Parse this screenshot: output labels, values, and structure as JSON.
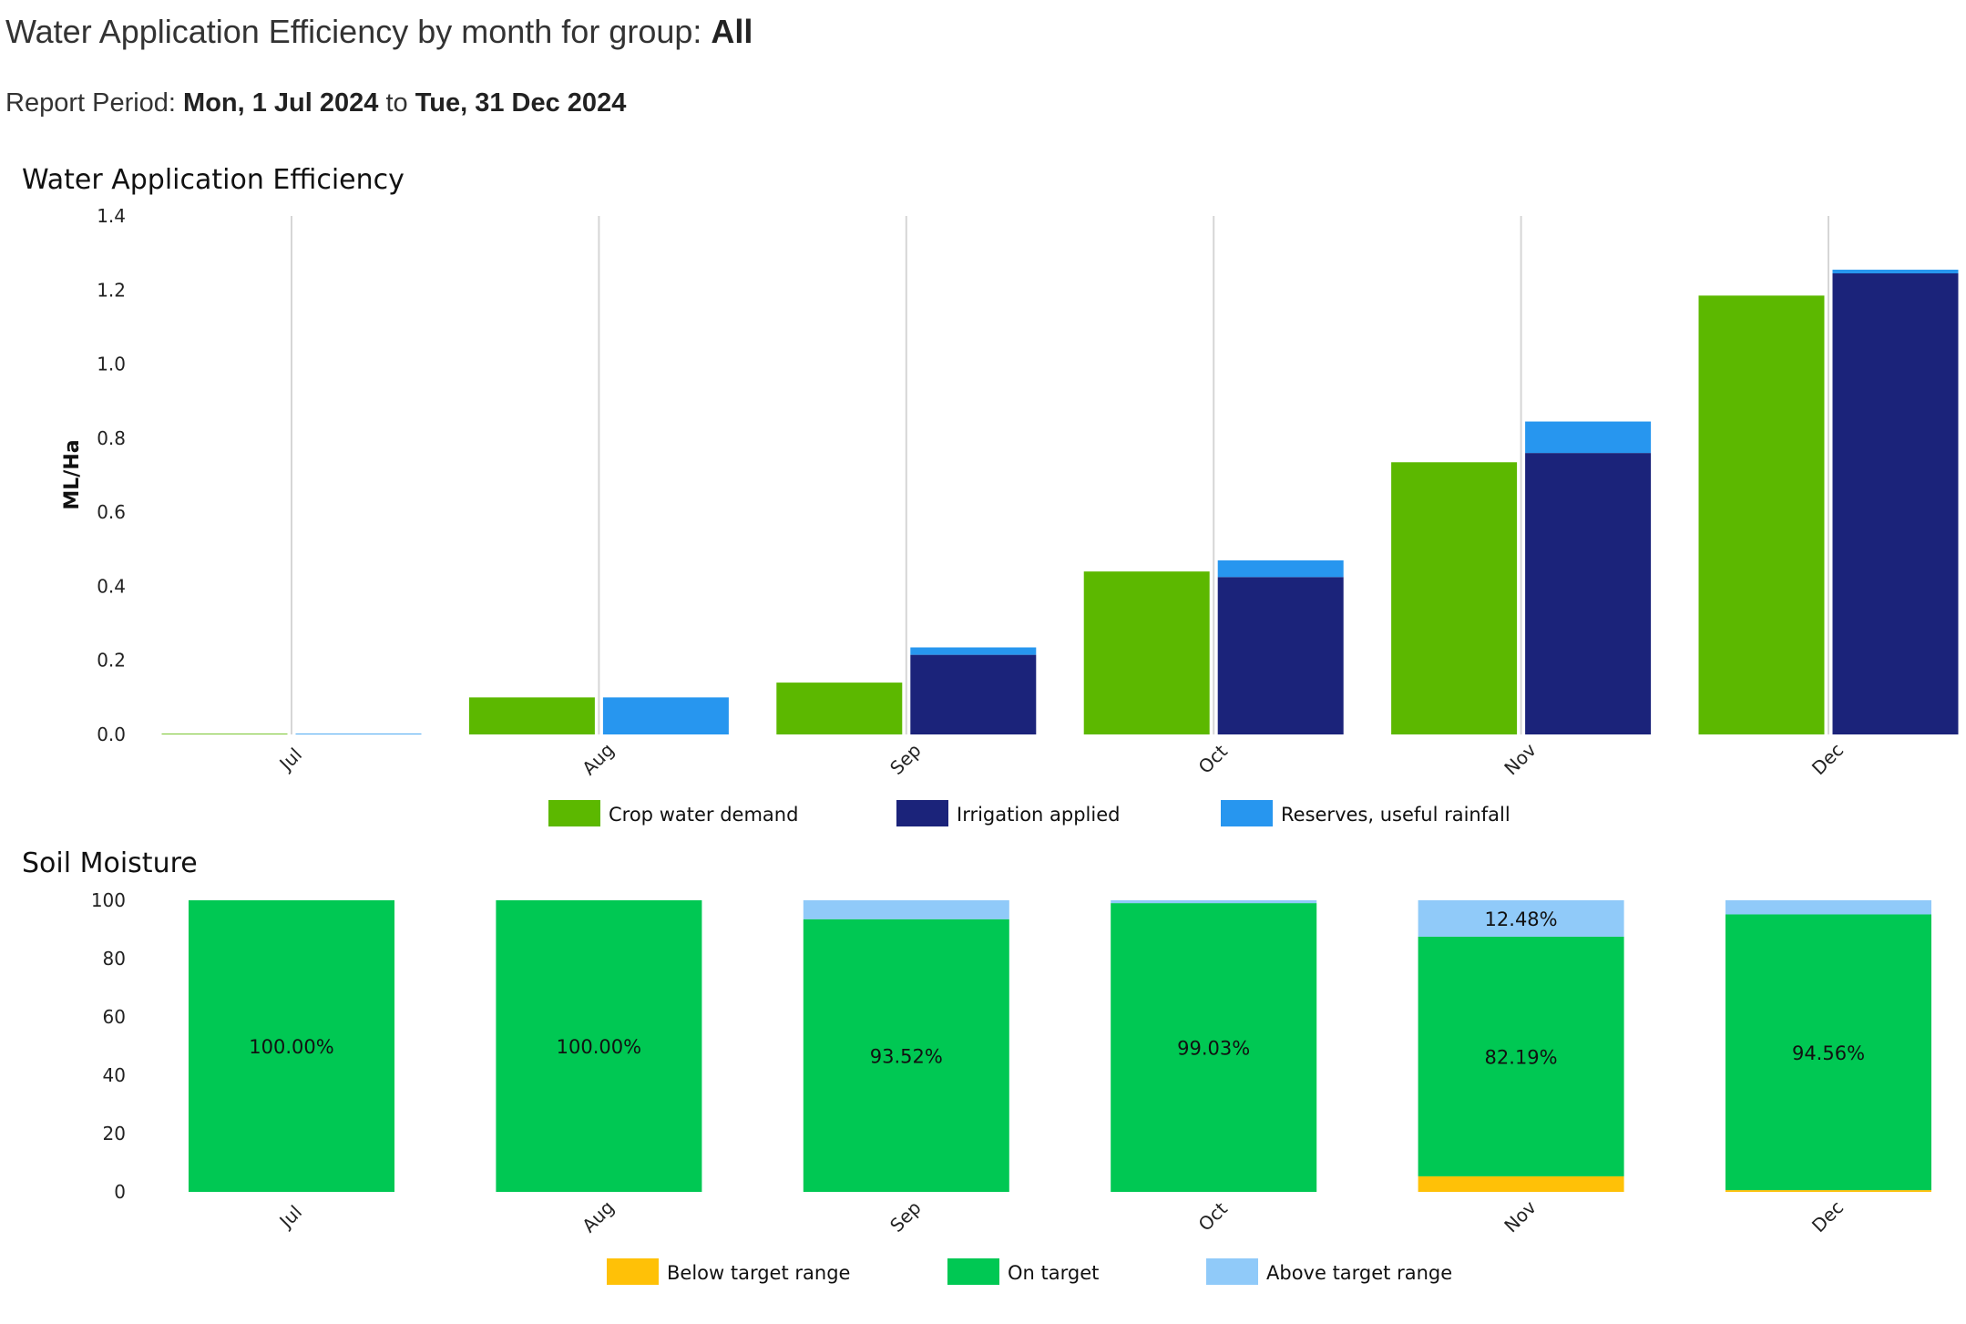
{
  "header": {
    "title_prefix": "Water Application Efficiency by month for group: ",
    "group": "All",
    "period_label": "Report Period: ",
    "period_start": "Mon, 1 Jul 2024",
    "period_to": " to ",
    "period_end": "Tue, 31 Dec 2024"
  },
  "chart_data": [
    {
      "id": "water-application-efficiency",
      "type": "bar",
      "title": "Water Application Efficiency",
      "xlabel": "",
      "ylabel": "ML/Ha",
      "ylim": [
        0,
        1.4
      ],
      "yticks": [
        "0.0",
        "0.2",
        "0.4",
        "0.6",
        "0.8",
        "1.0",
        "1.2",
        "1.4"
      ],
      "grid": "vertical lines at category centers",
      "categories": [
        "Jul",
        "Aug",
        "Sep",
        "Oct",
        "Nov",
        "Dec"
      ],
      "series": [
        {
          "name": "Crop water demand",
          "color": "#5cb800",
          "stack": "demand",
          "values": [
            0.002,
            0.1,
            0.14,
            0.44,
            0.735,
            1.185
          ]
        },
        {
          "name": "Irrigation applied",
          "color": "#1b237a",
          "stack": "supply",
          "values": [
            0,
            0,
            0.215,
            0.425,
            0.76,
            1.245
          ]
        },
        {
          "name": "Reserves, useful rainfall",
          "color": "#2796ef",
          "stack": "supply",
          "values": [
            0.002,
            0.1,
            0.02,
            0.045,
            0.085,
            0.01
          ]
        }
      ],
      "legend": "bottom-center"
    },
    {
      "id": "soil-moisture",
      "type": "bar",
      "title": "Soil Moisture",
      "xlabel": "",
      "ylabel": "",
      "ylim": [
        0,
        100
      ],
      "yticks": [
        "0",
        "20",
        "40",
        "60",
        "80",
        "100"
      ],
      "categories": [
        "Jul",
        "Aug",
        "Sep",
        "Oct",
        "Nov",
        "Dec"
      ],
      "series": [
        {
          "name": "Below target range",
          "color": "#ffc107",
          "values": [
            0,
            0,
            0,
            0,
            5.33,
            0.6
          ]
        },
        {
          "name": "On target",
          "color": "#00c853",
          "values": [
            100,
            100,
            93.52,
            99.03,
            82.19,
            94.56
          ]
        },
        {
          "name": "Above target range",
          "color": "#90caf9",
          "values": [
            0,
            0,
            6.48,
            0.97,
            12.48,
            4.84
          ]
        }
      ],
      "data_labels": {
        "On target": [
          "100.00%",
          "100.00%",
          "93.52%",
          "99.03%",
          "82.19%",
          "94.56%"
        ],
        "Above target range": [
          "",
          "",
          "",
          "",
          "12.48%",
          ""
        ]
      },
      "legend": "bottom-center"
    }
  ]
}
